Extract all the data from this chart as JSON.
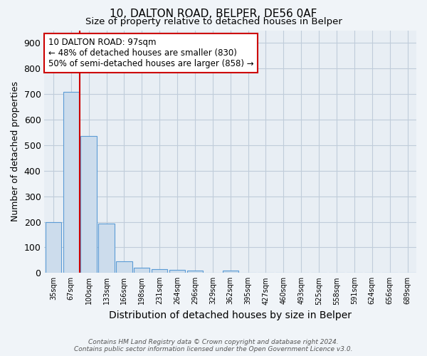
{
  "title1": "10, DALTON ROAD, BELPER, DE56 0AF",
  "title2": "Size of property relative to detached houses in Belper",
  "xlabel": "Distribution of detached houses by size in Belper",
  "ylabel": "Number of detached properties",
  "categories": [
    "35sqm",
    "67sqm",
    "100sqm",
    "133sqm",
    "166sqm",
    "198sqm",
    "231sqm",
    "264sqm",
    "296sqm",
    "329sqm",
    "362sqm",
    "395sqm",
    "427sqm",
    "460sqm",
    "493sqm",
    "525sqm",
    "558sqm",
    "591sqm",
    "624sqm",
    "656sqm",
    "689sqm"
  ],
  "values": [
    200,
    710,
    535,
    192,
    45,
    20,
    15,
    12,
    8,
    0,
    8,
    0,
    0,
    0,
    0,
    0,
    0,
    0,
    0,
    0,
    0
  ],
  "bar_color": "#ccdcec",
  "bar_edge_color": "#5b9bd5",
  "vline_x": 1.5,
  "vline_color": "#cc0000",
  "annotation_text": "10 DALTON ROAD: 97sqm\n← 48% of detached houses are smaller (830)\n50% of semi-detached houses are larger (858) →",
  "annotation_box_color": "#ffffff",
  "annotation_box_edge": "#cc0000",
  "ylim": [
    0,
    950
  ],
  "yticks": [
    0,
    100,
    200,
    300,
    400,
    500,
    600,
    700,
    800,
    900
  ],
  "footer": "Contains HM Land Registry data © Crown copyright and database right 2024.\nContains public sector information licensed under the Open Government Licence v3.0.",
  "bg_color": "#f0f4f8",
  "plot_bg_color": "#e8eef4",
  "grid_color": "#c0ccda"
}
